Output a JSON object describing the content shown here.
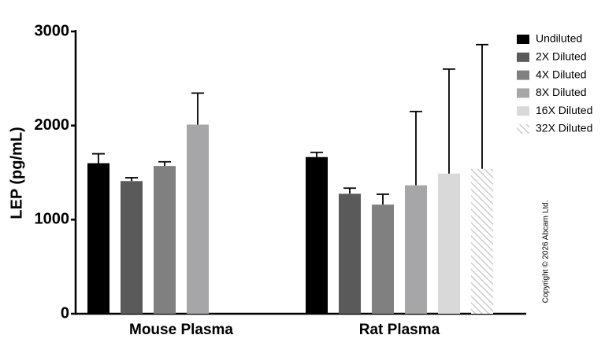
{
  "chart_data": {
    "type": "bar",
    "y_label": "LEP (pg/mL)",
    "note": "Copyright © 2026 Abcam Ltd.",
    "categories": [
      "Mouse Plasma",
      "Rat Plasma"
    ],
    "series": [
      {
        "name": "Undiluted",
        "color": "#000000",
        "values": [
          1600,
          1665
        ],
        "errors": [
          100,
          50
        ]
      },
      {
        "name": "2X Diluted",
        "color": "#5a5a5a",
        "values": [
          1410,
          1275
        ],
        "errors": [
          35,
          60
        ]
      },
      {
        "name": "4X Diluted",
        "color": "#808080",
        "values": [
          1570,
          1160
        ],
        "errors": [
          45,
          110
        ]
      },
      {
        "name": "8X Diluted",
        "color": "#a6a6a8",
        "values": [
          2010,
          1365
        ],
        "errors": [
          335,
          785
        ]
      },
      {
        "name": "16X Diluted",
        "color": "#d9d9d9",
        "values": [
          null,
          1490
        ],
        "errors": [
          null,
          1110
        ]
      },
      {
        "name": "32X Diluted",
        "color": "#cccccc",
        "hatch": true,
        "values": [
          null,
          1540
        ],
        "errors": [
          null,
          1320
        ]
      }
    ],
    "ylim": [
      0,
      3000
    ],
    "yticks": [
      0,
      1000,
      2000,
      3000
    ],
    "grid": false,
    "legend": "right"
  }
}
